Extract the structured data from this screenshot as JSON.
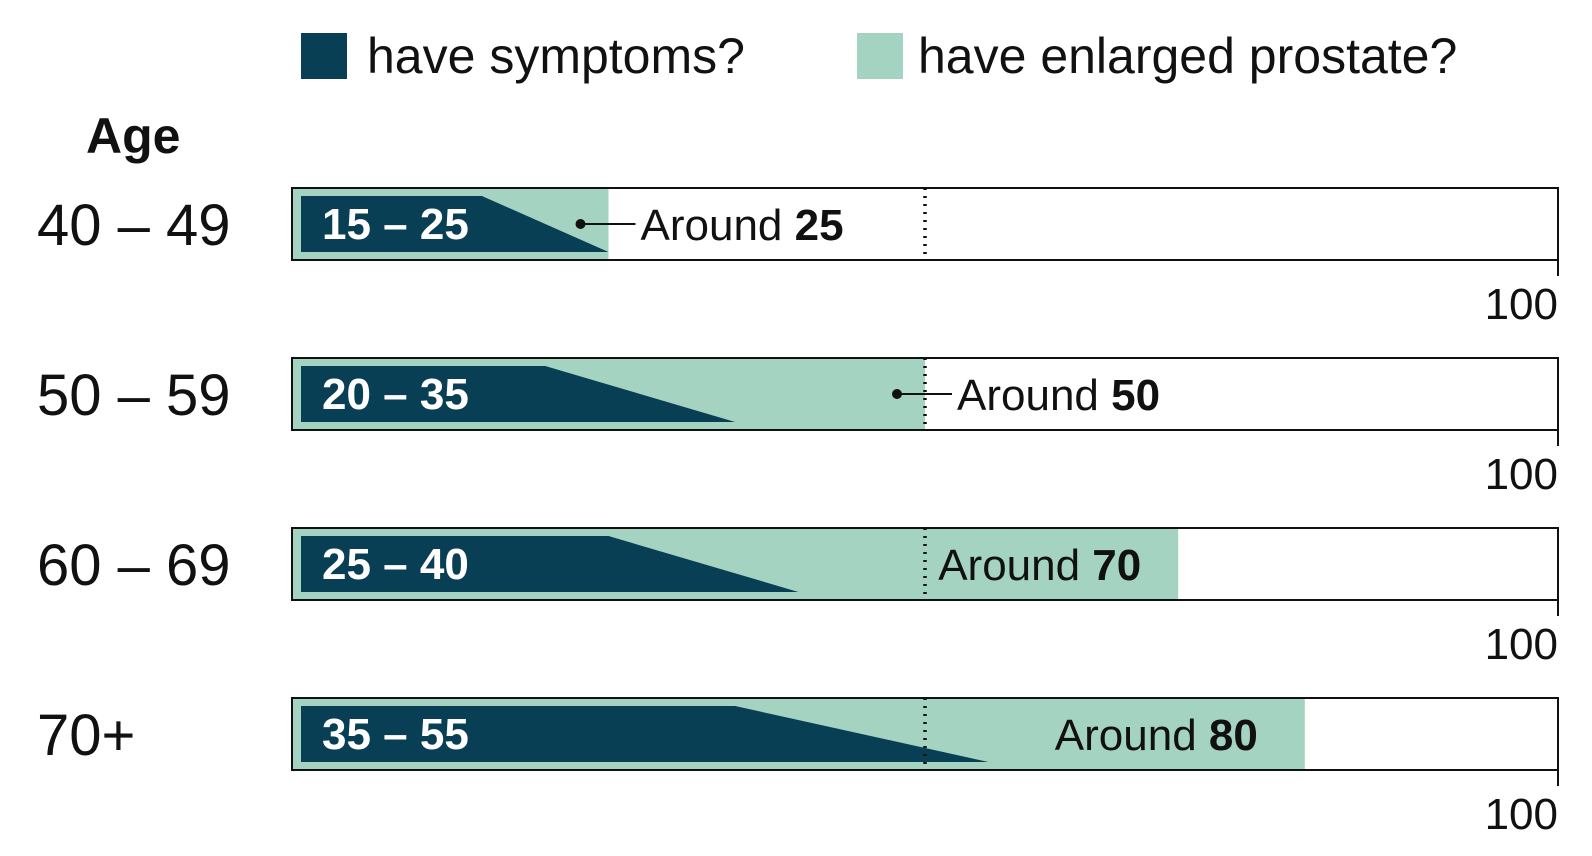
{
  "colors": {
    "symptoms": "#083f55",
    "enlarged": "#a5d3c2",
    "frame": "#111111"
  },
  "legend": {
    "symptoms_label": "have symptoms?",
    "enlarged_label": "have enlarged prostate?"
  },
  "axis_title": "Age",
  "chart_data": {
    "type": "bar",
    "categories": [
      "40 – 49",
      "50 – 59",
      "60 – 69",
      "70+"
    ],
    "xlim": [
      0,
      100
    ],
    "tick_label": "100",
    "reference_line": 50,
    "series": [
      {
        "name": "have symptoms?",
        "ranges": [
          [
            15,
            25
          ],
          [
            20,
            35
          ],
          [
            25,
            40
          ],
          [
            35,
            55
          ]
        ],
        "labels": [
          "15 – 25",
          "20 – 35",
          "25 – 40",
          "35 – 55"
        ]
      },
      {
        "name": "have enlarged prostate?",
        "values": [
          25,
          50,
          70,
          80
        ],
        "around_prefix": "Around",
        "labels": [
          "25",
          "50",
          "70",
          "80"
        ]
      }
    ]
  }
}
